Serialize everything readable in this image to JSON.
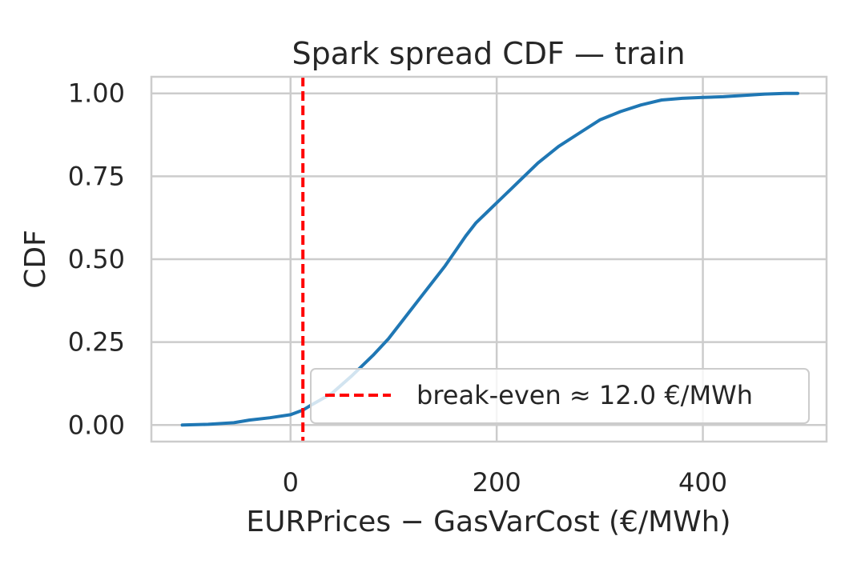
{
  "chart_data": {
    "type": "line",
    "title": "Spark spread CDF — train",
    "xlabel": "EURPrices − GasVarCost (€/MWh)",
    "ylabel": "CDF",
    "xlim": [
      -135,
      520
    ],
    "ylim": [
      -0.05,
      1.05
    ],
    "xticks": [
      0,
      200,
      400
    ],
    "xtick_labels": [
      "0",
      "200",
      "400"
    ],
    "yticks": [
      0,
      0.25,
      0.5,
      0.75,
      1.0
    ],
    "ytick_labels": [
      "0.00",
      "0.25",
      "0.50",
      "0.75",
      "1.00"
    ],
    "grid": true,
    "series": [
      {
        "color": "#1f77b4",
        "x": [
          -105,
          -80,
          -55,
          -40,
          -20,
          0,
          12,
          20,
          40,
          60,
          80,
          95,
          110,
          125,
          140,
          150,
          160,
          170,
          180,
          190,
          200,
          220,
          240,
          260,
          280,
          300,
          320,
          340,
          360,
          380,
          400,
          420,
          440,
          460,
          480,
          492
        ],
        "y": [
          0.0,
          0.002,
          0.007,
          0.015,
          0.022,
          0.031,
          0.045,
          0.06,
          0.095,
          0.15,
          0.21,
          0.26,
          0.32,
          0.38,
          0.44,
          0.48,
          0.525,
          0.57,
          0.61,
          0.64,
          0.67,
          0.73,
          0.79,
          0.84,
          0.88,
          0.92,
          0.945,
          0.965,
          0.98,
          0.985,
          0.988,
          0.99,
          0.994,
          0.998,
          1.0,
          1.0
        ]
      },
      {
        "name": "break-even ≈ 12.0 €/MWh",
        "type": "vline",
        "x": 12.0,
        "color": "#ff0000",
        "style": "dashed"
      }
    ],
    "legend": {
      "position": "lower-right",
      "entries": [
        "break-even ≈ 12.0 €/MWh"
      ]
    }
  }
}
